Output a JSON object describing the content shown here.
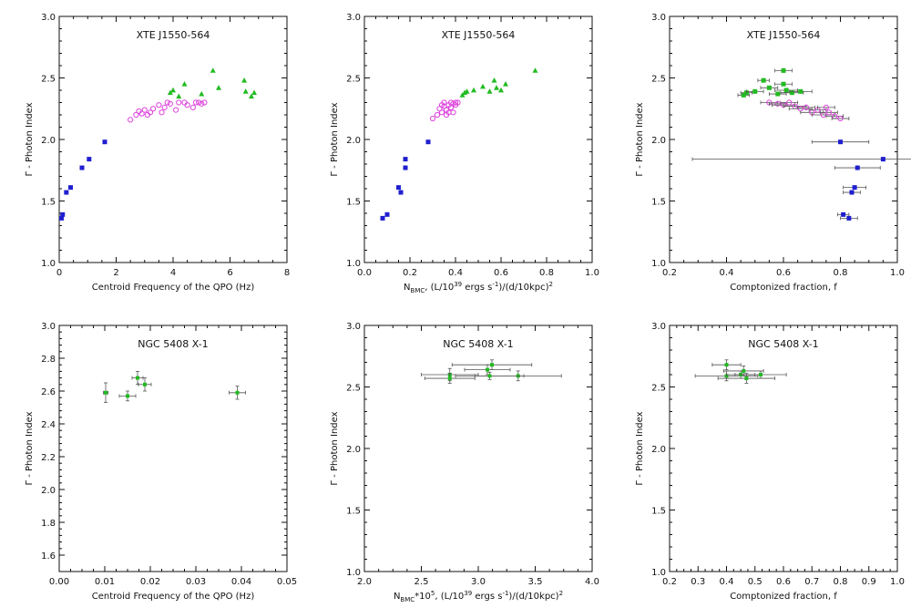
{
  "figure": {
    "colors": {
      "blue": "#1f1fd0",
      "magenta": "#dd44dd",
      "green": "#22bb22",
      "darkgreen": "#1a7a1a"
    }
  },
  "chart_data": [
    {
      "id": "xte-qpo",
      "type": "scatter",
      "title": "XTE J1550-564",
      "xlabel": "Centroid Frequency of the QPO (Hz)",
      "ylabel": "Γ - Photon Index",
      "xlim": [
        0,
        8
      ],
      "ylim": [
        1.0,
        3.0
      ],
      "xticks": [
        0,
        2,
        4,
        6,
        8
      ],
      "xtick_labels": [
        "0",
        "2",
        "4",
        "6",
        "8"
      ],
      "yticks": [
        1.0,
        1.5,
        2.0,
        2.5,
        3.0
      ],
      "ytick_labels": [
        "1.0",
        "1.5",
        "2.0",
        "2.5",
        "3.0"
      ],
      "series": [
        {
          "name": "blue",
          "marker": "square",
          "color": "#1f1fd0",
          "points": [
            [
              0.08,
              1.36
            ],
            [
              0.12,
              1.39
            ],
            [
              0.25,
              1.57
            ],
            [
              0.4,
              1.61
            ],
            [
              0.8,
              1.77
            ],
            [
              1.05,
              1.84
            ],
            [
              1.6,
              1.98
            ]
          ]
        },
        {
          "name": "magenta",
          "marker": "circle",
          "color": "#dd44dd",
          "points": [
            [
              2.5,
              2.16
            ],
            [
              2.7,
              2.2
            ],
            [
              2.8,
              2.23
            ],
            [
              2.9,
              2.21
            ],
            [
              3.0,
              2.24
            ],
            [
              3.1,
              2.2
            ],
            [
              3.2,
              2.22
            ],
            [
              3.3,
              2.25
            ],
            [
              3.5,
              2.28
            ],
            [
              3.6,
              2.22
            ],
            [
              3.7,
              2.26
            ],
            [
              3.8,
              2.3
            ],
            [
              3.9,
              2.29
            ],
            [
              4.1,
              2.24
            ],
            [
              4.2,
              2.3
            ],
            [
              4.4,
              2.3
            ],
            [
              4.5,
              2.28
            ],
            [
              4.7,
              2.26
            ],
            [
              4.8,
              2.3
            ],
            [
              4.9,
              2.3
            ],
            [
              5.0,
              2.29
            ],
            [
              5.1,
              2.3
            ]
          ]
        },
        {
          "name": "green",
          "marker": "triangle",
          "color": "#22bb22",
          "points": [
            [
              3.9,
              2.38
            ],
            [
              4.0,
              2.4
            ],
            [
              4.2,
              2.35
            ],
            [
              4.4,
              2.45
            ],
            [
              5.0,
              2.37
            ],
            [
              5.4,
              2.56
            ],
            [
              5.6,
              2.42
            ],
            [
              6.5,
              2.48
            ],
            [
              6.55,
              2.39
            ],
            [
              6.75,
              2.35
            ],
            [
              6.85,
              2.38
            ]
          ]
        }
      ]
    },
    {
      "id": "xte-nbmc",
      "type": "scatter",
      "title": "XTE J1550-564",
      "xlabel_parts": [
        "N",
        "BMC",
        ", (L/10",
        "39",
        " ergs s",
        "-1",
        ")/(d/10kpc)",
        "2"
      ],
      "ylabel": "Γ - Photon Index",
      "xlim": [
        0.0,
        1.0
      ],
      "ylim": [
        1.0,
        3.0
      ],
      "xticks": [
        0.0,
        0.2,
        0.4,
        0.6,
        0.8,
        1.0
      ],
      "xtick_labels": [
        "0.0",
        "0.2",
        "0.4",
        "0.6",
        "0.8",
        "1.0"
      ],
      "yticks": [
        1.0,
        1.5,
        2.0,
        2.5,
        3.0
      ],
      "ytick_labels": [
        "1.0",
        "1.5",
        "2.0",
        "2.5",
        "3.0"
      ],
      "series": [
        {
          "name": "blue",
          "marker": "square",
          "color": "#1f1fd0",
          "points": [
            [
              0.08,
              1.36
            ],
            [
              0.1,
              1.39
            ],
            [
              0.15,
              1.61
            ],
            [
              0.16,
              1.57
            ],
            [
              0.18,
              1.84
            ],
            [
              0.18,
              1.77
            ],
            [
              0.28,
              1.98
            ]
          ]
        },
        {
          "name": "magenta",
          "marker": "circle",
          "color": "#dd44dd",
          "points": [
            [
              0.3,
              2.17
            ],
            [
              0.32,
              2.2
            ],
            [
              0.33,
              2.25
            ],
            [
              0.34,
              2.22
            ],
            [
              0.35,
              2.27
            ],
            [
              0.35,
              2.3
            ],
            [
              0.36,
              2.24
            ],
            [
              0.37,
              2.22
            ],
            [
              0.37,
              2.28
            ],
            [
              0.38,
              2.3
            ],
            [
              0.38,
              2.26
            ],
            [
              0.39,
              2.22
            ],
            [
              0.39,
              2.29
            ],
            [
              0.4,
              2.3
            ],
            [
              0.4,
              2.28
            ],
            [
              0.41,
              2.3
            ],
            [
              0.36,
              2.2
            ],
            [
              0.34,
              2.28
            ]
          ]
        },
        {
          "name": "green",
          "marker": "triangle",
          "color": "#22bb22",
          "points": [
            [
              0.43,
              2.36
            ],
            [
              0.44,
              2.38
            ],
            [
              0.45,
              2.39
            ],
            [
              0.48,
              2.4
            ],
            [
              0.52,
              2.43
            ],
            [
              0.55,
              2.39
            ],
            [
              0.57,
              2.48
            ],
            [
              0.58,
              2.42
            ],
            [
              0.6,
              2.4
            ],
            [
              0.62,
              2.45
            ],
            [
              0.75,
              2.56
            ]
          ]
        }
      ]
    },
    {
      "id": "xte-f",
      "type": "scatter",
      "title": "XTE J1550-564",
      "xlabel": "Comptonized fraction, f",
      "ylabel": "Γ - Photon Index",
      "xlim": [
        0.2,
        1.0
      ],
      "ylim": [
        1.0,
        3.0
      ],
      "xticks": [
        0.2,
        0.4,
        0.6,
        0.8,
        1.0
      ],
      "xtick_labels": [
        "0.2",
        "0.4",
        "0.6",
        "0.8",
        "1.0"
      ],
      "yticks": [
        1.0,
        1.5,
        2.0,
        2.5,
        3.0
      ],
      "ytick_labels": [
        "1.0",
        "1.5",
        "2.0",
        "2.5",
        "3.0"
      ],
      "series": [
        {
          "name": "blue",
          "marker": "square",
          "color": "#1f1fd0",
          "points": [
            [
              0.95,
              1.84,
              0.67
            ],
            [
              0.8,
              1.98,
              0.1
            ],
            [
              0.86,
              1.77,
              0.08
            ],
            [
              0.85,
              1.61,
              0.04
            ],
            [
              0.84,
              1.57,
              0.03
            ],
            [
              0.81,
              1.39,
              0.02
            ],
            [
              0.83,
              1.36,
              0.03
            ]
          ]
        },
        {
          "name": "magenta",
          "marker": "circle",
          "color": "#dd44dd",
          "points": [
            [
              0.55,
              2.3,
              0.03
            ],
            [
              0.58,
              2.29,
              0.03
            ],
            [
              0.6,
              2.28,
              0.04
            ],
            [
              0.62,
              2.3,
              0.03
            ],
            [
              0.64,
              2.27,
              0.04
            ],
            [
              0.66,
              2.25,
              0.04
            ],
            [
              0.68,
              2.26,
              0.03
            ],
            [
              0.7,
              2.22,
              0.04
            ],
            [
              0.72,
              2.24,
              0.03
            ],
            [
              0.74,
              2.2,
              0.04
            ],
            [
              0.76,
              2.22,
              0.03
            ],
            [
              0.78,
              2.19,
              0.03
            ],
            [
              0.75,
              2.26,
              0.03
            ],
            [
              0.8,
              2.17,
              0.03
            ]
          ]
        },
        {
          "name": "green",
          "marker": "square",
          "color": "#22bb22",
          "points": [
            [
              0.46,
              2.36,
              0.02
            ],
            [
              0.47,
              2.38,
              0.02
            ],
            [
              0.5,
              2.39,
              0.03
            ],
            [
              0.53,
              2.48,
              0.02
            ],
            [
              0.55,
              2.42,
              0.03
            ],
            [
              0.58,
              2.37,
              0.03
            ],
            [
              0.6,
              2.56,
              0.03
            ],
            [
              0.6,
              2.45,
              0.03
            ],
            [
              0.61,
              2.4,
              0.04
            ],
            [
              0.63,
              2.38,
              0.04
            ],
            [
              0.66,
              2.39,
              0.04
            ]
          ]
        }
      ]
    },
    {
      "id": "ngc-qpo",
      "type": "scatter",
      "title": "NGC 5408 X-1",
      "xlabel": "Centroid Frequency of the QPO (Hz)",
      "ylabel": "Γ - Photon Index",
      "xlim": [
        0.0,
        0.05
      ],
      "ylim": [
        1.5,
        3.0
      ],
      "xticks": [
        0.0,
        0.01,
        0.02,
        0.03,
        0.04,
        0.05
      ],
      "xtick_labels": [
        "0.00",
        "0.01",
        "0.02",
        "0.03",
        "0.04",
        "0.05"
      ],
      "yticks": [
        1.6,
        1.8,
        2.0,
        2.2,
        2.4,
        2.6,
        2.8,
        3.0
      ],
      "ytick_labels": [
        "1.6",
        "1.8",
        "2.0",
        "2.2",
        "2.4",
        "2.6",
        "2.8",
        "3.0"
      ],
      "series": [
        {
          "name": "green",
          "marker": "square",
          "color": "#22bb22",
          "points": [
            [
              0.0102,
              2.59,
              0.0005,
              0.06
            ],
            [
              0.015,
              2.57,
              0.0018,
              0.03
            ],
            [
              0.0172,
              2.68,
              0.0012,
              0.04
            ],
            [
              0.0188,
              2.64,
              0.0014,
              0.04
            ],
            [
              0.0391,
              2.59,
              0.0018,
              0.04
            ]
          ]
        }
      ]
    },
    {
      "id": "ngc-nbmc",
      "type": "scatter",
      "title": "NGC 5408 X-1",
      "xlabel_parts": [
        "N",
        "BMC",
        "*10",
        "5",
        ", (L/10",
        "39",
        " ergs s",
        "-1",
        ")/(d/10kpc)",
        "2"
      ],
      "ylabel": "Γ - Photon Index",
      "xlim": [
        2.0,
        4.0
      ],
      "ylim": [
        1.0,
        3.0
      ],
      "xticks": [
        2.0,
        2.5,
        3.0,
        3.5,
        4.0
      ],
      "xtick_labels": [
        "2.0",
        "2.5",
        "3.0",
        "3.5",
        "4.0"
      ],
      "yticks": [
        1.0,
        1.5,
        2.0,
        2.5,
        3.0
      ],
      "ytick_labels": [
        "1.0",
        "1.5",
        "2.0",
        "2.5",
        "3.0"
      ],
      "series": [
        {
          "name": "green",
          "marker": "square",
          "color": "#22bb22",
          "points": [
            [
              2.75,
              2.6,
              0.25,
              0.05
            ],
            [
              2.75,
              2.57,
              0.22,
              0.04
            ],
            [
              3.08,
              2.64,
              0.2,
              0.04
            ],
            [
              3.12,
              2.68,
              0.35,
              0.04
            ],
            [
              3.35,
              2.59,
              0.38,
              0.04
            ],
            [
              3.1,
              2.59,
              0.3,
              0.03
            ]
          ]
        }
      ]
    },
    {
      "id": "ngc-f",
      "type": "scatter",
      "title": "NGC 5408 X-1",
      "xlabel": "Comptonized fraction, f",
      "ylabel": "Γ - Photon Index",
      "xlim": [
        0.2,
        1.0
      ],
      "ylim": [
        1.0,
        3.0
      ],
      "xticks": [
        0.2,
        0.3,
        0.4,
        0.5,
        0.6,
        0.7,
        0.8,
        0.9,
        1.0
      ],
      "xtick_labels": [
        "0.2",
        "0.3",
        "0.4",
        "0.5",
        "0.6",
        "0.7",
        "0.8",
        "0.9",
        "1.0"
      ],
      "yticks": [
        1.0,
        1.5,
        2.0,
        2.5,
        3.0
      ],
      "ytick_labels": [
        "1.0",
        "1.5",
        "2.0",
        "2.5",
        "3.0"
      ],
      "series": [
        {
          "name": "green",
          "marker": "square",
          "color": "#22bb22",
          "points": [
            [
              0.4,
              2.68,
              0.05,
              0.04
            ],
            [
              0.46,
              2.63,
              0.07,
              0.04
            ],
            [
              0.4,
              2.59,
              0.11,
              0.04
            ],
            [
              0.45,
              2.6,
              0.05,
              0.03
            ],
            [
              0.47,
              2.57,
              0.1,
              0.04
            ],
            [
              0.52,
              2.6,
              0.09,
              0.03
            ]
          ]
        }
      ]
    }
  ]
}
